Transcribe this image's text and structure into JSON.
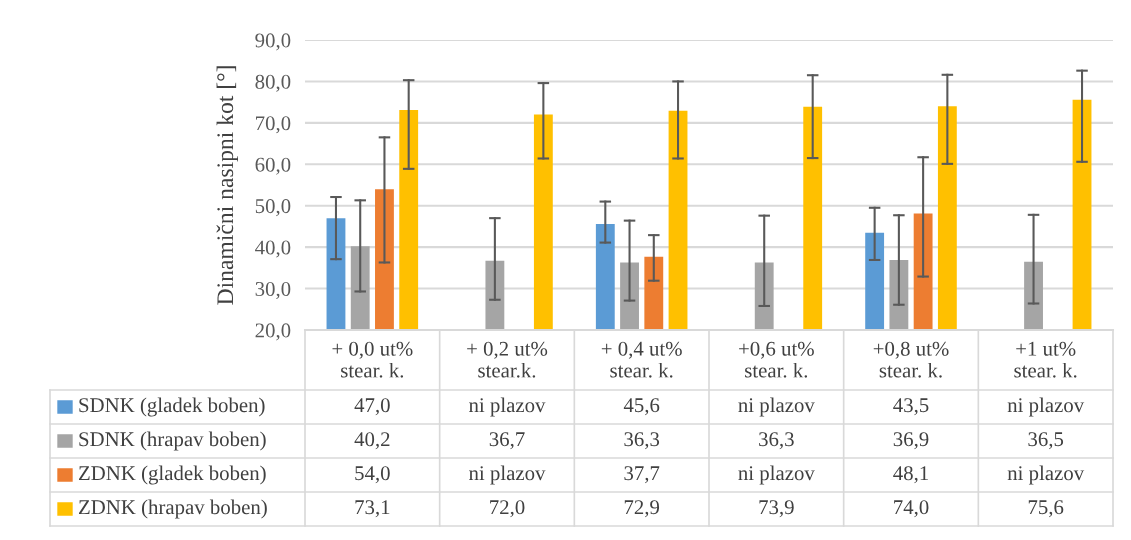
{
  "chart_data": {
    "type": "bar",
    "ylabel": "Dinamični nasipni kot [°]",
    "categories": [
      "+ 0,0 ut%\nstear. k.",
      "+ 0,2 ut%\nstear.k.",
      "+ 0,4 ut%\nstear. k.",
      "+0,6 ut%\nstear. k.",
      "+0,8 ut%\nstear. k.",
      "+1 ut%\nstear. k."
    ],
    "series": [
      {
        "name": "SDNK (gladek boben)",
        "color": "#5b9bd5",
        "values": [
          47.0,
          null,
          45.6,
          null,
          43.5,
          null
        ],
        "value_labels": [
          "47,0",
          "ni plazov",
          "45,6",
          "ni plazov",
          "43,5",
          "ni plazov"
        ],
        "errors": [
          [
            37.1,
            52.1
          ],
          null,
          [
            41.1,
            51.0
          ],
          null,
          [
            36.9,
            49.5
          ],
          null
        ]
      },
      {
        "name": "SDNK (hrapav boben)",
        "color": "#a5a5a5",
        "values": [
          40.2,
          36.7,
          36.3,
          36.3,
          36.9,
          36.5
        ],
        "value_labels": [
          "40,2",
          "36,7",
          "36,3",
          "36,3",
          "36,9",
          "36,5"
        ],
        "errors": [
          [
            29.3,
            51.3
          ],
          [
            27.3,
            47.0
          ],
          [
            27.1,
            46.4
          ],
          [
            25.8,
            47.6
          ],
          [
            26.1,
            47.7
          ],
          [
            26.4,
            47.8
          ]
        ]
      },
      {
        "name": "ZDNK (gladek boben)",
        "color": "#ed7d31",
        "values": [
          54.0,
          null,
          37.7,
          null,
          48.1,
          null
        ],
        "value_labels": [
          "54,0",
          "ni plazov",
          "37,7",
          "ni plazov",
          "48,1",
          "ni plazov"
        ],
        "errors": [
          [
            36.3,
            66.5
          ],
          null,
          [
            31.9,
            42.9
          ],
          null,
          [
            32.9,
            61.7
          ],
          null
        ]
      },
      {
        "name": "ZDNK (hrapav boben)",
        "color": "#ffc000",
        "values": [
          73.1,
          72.0,
          72.9,
          73.9,
          74.0,
          75.6
        ],
        "value_labels": [
          "73,1",
          "72,0",
          "72,9",
          "73,9",
          "74,0",
          "75,6"
        ],
        "errors": [
          [
            58.9,
            80.3
          ],
          [
            61.4,
            79.6
          ],
          [
            61.4,
            80.0
          ],
          [
            61.5,
            81.5
          ],
          [
            60.1,
            81.6
          ],
          [
            60.6,
            82.6
          ]
        ]
      }
    ],
    "ylim": [
      20,
      90
    ],
    "yticks": [
      {
        "value": 20,
        "label": "20,0"
      },
      {
        "value": 30,
        "label": "30,0"
      },
      {
        "value": 40,
        "label": "40,0"
      },
      {
        "value": 50,
        "label": "50,0"
      },
      {
        "value": 60,
        "label": "60,0"
      },
      {
        "value": 70,
        "label": "70,0"
      },
      {
        "value": 80,
        "label": "80,0"
      },
      {
        "value": 90,
        "label": "90,0"
      }
    ],
    "grid": "y",
    "legend": "bottom"
  }
}
